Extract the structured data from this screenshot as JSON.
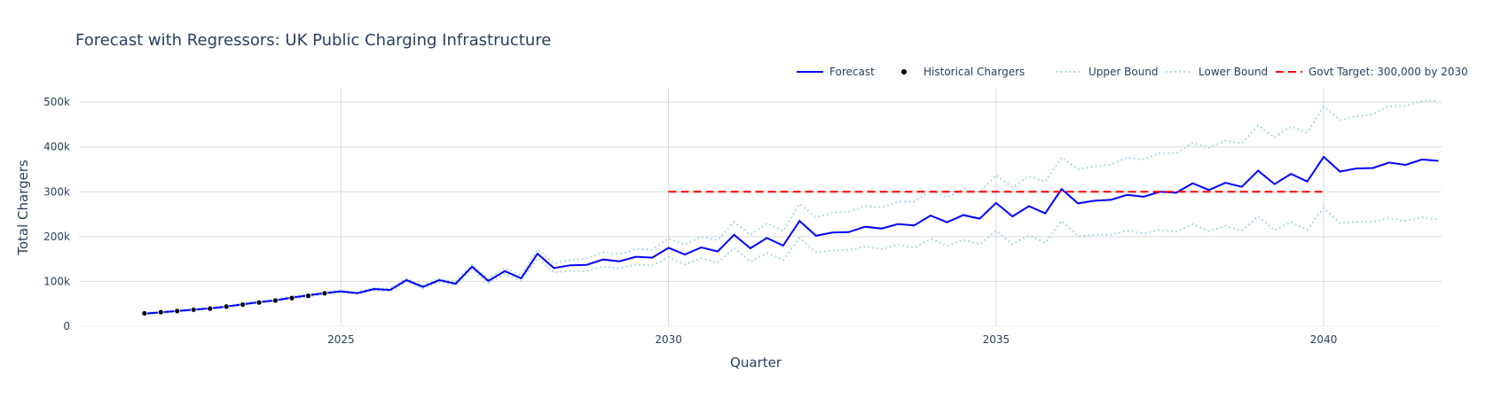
{
  "chart_data": {
    "type": "line",
    "title": "Forecast with Regressors: UK Public Charging Infrastructure",
    "xlabel": "Quarter",
    "ylabel": "Total Chargers",
    "xlim": [
      2021.0,
      2041.8
    ],
    "ylim": [
      0,
      530000
    ],
    "x_ticks": [
      2025,
      2030,
      2035,
      2040
    ],
    "x_tick_labels": [
      "2025",
      "2030",
      "2035",
      "2040"
    ],
    "y_ticks": [
      0,
      100000,
      200000,
      300000,
      400000,
      500000
    ],
    "y_tick_labels": [
      "0",
      "100k",
      "200k",
      "300k",
      "400k",
      "500k"
    ],
    "grid": true,
    "legend_position": "top-right",
    "colors": {
      "forecast": "#0000ff",
      "historical": "#000000",
      "bounds": "#add8e6",
      "target": "#ff0000",
      "grid": "#d9d9d9"
    },
    "legend": [
      {
        "label": "Forecast",
        "style": "solid",
        "color": "#0000ff"
      },
      {
        "label": "Historical Chargers",
        "style": "marker",
        "color": "#000000"
      },
      {
        "label": "Upper Bound",
        "style": "dotted",
        "color": "#add8e6"
      },
      {
        "label": "Lower Bound",
        "style": "dotted",
        "color": "#add8e6"
      },
      {
        "label": "Govt Target: 300,000 by 2030",
        "style": "dashed",
        "color": "#ff0000"
      }
    ],
    "series": [
      {
        "name": "Forecast",
        "x": [
          2022.0,
          2022.25,
          2022.5,
          2022.75,
          2023.0,
          2023.25,
          2023.5,
          2023.75,
          2024.0,
          2024.25,
          2024.5,
          2024.75,
          2025.0,
          2025.25,
          2025.5,
          2025.75,
          2026.0,
          2026.25,
          2026.5,
          2026.75,
          2027.0,
          2027.25,
          2027.5,
          2027.75,
          2028.0,
          2028.25,
          2028.5,
          2028.75,
          2029.0,
          2029.25,
          2029.5,
          2029.75,
          2030.0,
          2030.25,
          2030.5,
          2030.75,
          2031.0,
          2031.25,
          2031.5,
          2031.75,
          2032.0,
          2032.25,
          2032.5,
          2032.75,
          2033.0,
          2033.25,
          2033.5,
          2033.75,
          2034.0,
          2034.25,
          2034.5,
          2034.75,
          2035.0,
          2035.25,
          2035.5,
          2035.75,
          2036.0,
          2036.25,
          2036.5,
          2036.75,
          2037.0,
          2037.25,
          2037.5,
          2037.75,
          2038.0,
          2038.25,
          2038.5,
          2038.75,
          2039.0,
          2039.25,
          2039.5,
          2039.75,
          2040.0,
          2040.25,
          2040.5,
          2040.75,
          2041.0,
          2041.25,
          2041.5,
          2041.75
        ],
        "y": [
          28000,
          31000,
          34000,
          37000,
          40000,
          44000,
          49000,
          54000,
          58000,
          64000,
          69000,
          74000,
          78000,
          74000,
          83000,
          81000,
          103000,
          88000,
          103000,
          95000,
          133000,
          101000,
          123000,
          107000,
          162000,
          130000,
          136000,
          137000,
          149000,
          145000,
          155000,
          153000,
          175000,
          160000,
          176000,
          167000,
          204000,
          174000,
          197000,
          180000,
          235000,
          202000,
          209000,
          210000,
          222000,
          218000,
          228000,
          225000,
          247000,
          232000,
          248000,
          240000,
          275000,
          245000,
          268000,
          252000,
          306000,
          274000,
          280000,
          282000,
          293000,
          289000,
          300000,
          298000,
          319000,
          304000,
          320000,
          311000,
          347000,
          317000,
          340000,
          323000,
          378000,
          345000,
          352000,
          353000,
          365000,
          360000,
          372000,
          369000
        ]
      },
      {
        "name": "Historical Chargers",
        "x": [
          2022.0,
          2022.25,
          2022.5,
          2022.75,
          2023.0,
          2023.25,
          2023.5,
          2023.75,
          2024.0,
          2024.25,
          2024.5,
          2024.75
        ],
        "y": [
          29000,
          31500,
          34000,
          37000,
          39500,
          44000,
          48500,
          53000,
          57500,
          63000,
          68000,
          73500
        ]
      },
      {
        "name": "Upper Bound",
        "x": [
          2022.0,
          2022.25,
          2022.5,
          2022.75,
          2023.0,
          2023.25,
          2023.5,
          2023.75,
          2024.0,
          2024.25,
          2024.5,
          2024.75,
          2025.0,
          2025.25,
          2025.5,
          2025.75,
          2026.0,
          2026.25,
          2026.5,
          2026.75,
          2027.0,
          2027.25,
          2027.5,
          2027.75,
          2028.0,
          2028.25,
          2028.5,
          2028.75,
          2029.0,
          2029.25,
          2029.5,
          2029.75,
          2030.0,
          2030.25,
          2030.5,
          2030.75,
          2031.0,
          2031.25,
          2031.5,
          2031.75,
          2032.0,
          2032.25,
          2032.5,
          2032.75,
          2033.0,
          2033.25,
          2033.5,
          2033.75,
          2034.0,
          2034.25,
          2034.5,
          2034.75,
          2035.0,
          2035.25,
          2035.5,
          2035.75,
          2036.0,
          2036.25,
          2036.5,
          2036.75,
          2037.0,
          2037.25,
          2037.5,
          2037.75,
          2038.0,
          2038.25,
          2038.5,
          2038.75,
          2039.0,
          2039.25,
          2039.5,
          2039.75,
          2040.0,
          2040.25,
          2040.5,
          2040.75,
          2041.0,
          2041.25,
          2041.5,
          2041.75
        ],
        "y": [
          29500,
          32500,
          35500,
          38500,
          41500,
          46000,
          51000,
          56000,
          60500,
          66500,
          71500,
          77000,
          80000,
          76000,
          86000,
          84000,
          106000,
          92000,
          107000,
          99000,
          138000,
          106000,
          130000,
          113000,
          172000,
          140000,
          148000,
          151000,
          165000,
          161000,
          172000,
          171000,
          196000,
          182000,
          200000,
          192000,
          233000,
          204000,
          230000,
          212000,
          273000,
          243000,
          253000,
          256000,
          268000,
          265000,
          278000,
          278000,
          303000,
          288000,
          306000,
          300000,
          337000,
          310000,
          335000,
          322000,
          377000,
          350000,
          357000,
          361000,
          377000,
          372000,
          386000,
          386000,
          409000,
          398000,
          414000,
          408000,
          448000,
          421000,
          446000,
          432000,
          490000,
          460000,
          468000,
          473000,
          491000,
          491000,
          503000,
          503000
        ]
      },
      {
        "name": "Lower Bound",
        "x": [
          2022.0,
          2022.25,
          2022.5,
          2022.75,
          2023.0,
          2023.25,
          2023.5,
          2023.75,
          2024.0,
          2024.25,
          2024.5,
          2024.75,
          2025.0,
          2025.25,
          2025.5,
          2025.75,
          2026.0,
          2026.25,
          2026.5,
          2026.75,
          2027.0,
          2027.25,
          2027.5,
          2027.75,
          2028.0,
          2028.25,
          2028.5,
          2028.75,
          2029.0,
          2029.25,
          2029.5,
          2029.75,
          2030.0,
          2030.25,
          2030.5,
          2030.75,
          2031.0,
          2031.25,
          2031.5,
          2031.75,
          2032.0,
          2032.25,
          2032.5,
          2032.75,
          2033.0,
          2033.25,
          2033.5,
          2033.75,
          2034.0,
          2034.25,
          2034.5,
          2034.75,
          2035.0,
          2035.25,
          2035.5,
          2035.75,
          2036.0,
          2036.25,
          2036.5,
          2036.75,
          2037.0,
          2037.25,
          2037.5,
          2037.75,
          2038.0,
          2038.25,
          2038.5,
          2038.75,
          2039.0,
          2039.25,
          2039.5,
          2039.75,
          2040.0,
          2040.25,
          2040.5,
          2040.75,
          2041.0,
          2041.25,
          2041.5,
          2041.75
        ],
        "y": [
          26500,
          29500,
          32500,
          35500,
          38500,
          42000,
          47000,
          52000,
          55500,
          61500,
          66500,
          71000,
          76000,
          72000,
          80000,
          78000,
          100000,
          84000,
          99000,
          91000,
          128000,
          96000,
          116000,
          101000,
          152000,
          120000,
          124000,
          123000,
          133000,
          129000,
          138000,
          135000,
          154000,
          138000,
          152000,
          142000,
          175000,
          144000,
          164000,
          148000,
          197000,
          165000,
          169000,
          170000,
          178000,
          172000,
          182000,
          175000,
          195000,
          179000,
          193000,
          183000,
          213000,
          183000,
          203000,
          186000,
          235000,
          201000,
          204000,
          204000,
          213000,
          207000,
          215000,
          211000,
          228000,
          212000,
          224000,
          213000,
          245000,
          214000,
          233000,
          215000,
          264000,
          230000,
          233000,
          233000,
          241000,
          235000,
          243000,
          238000
        ]
      },
      {
        "name": "Govt Target: 300,000 by 2030",
        "x": [
          2030.0,
          2040.0
        ],
        "y": [
          300000,
          300000
        ]
      }
    ]
  }
}
